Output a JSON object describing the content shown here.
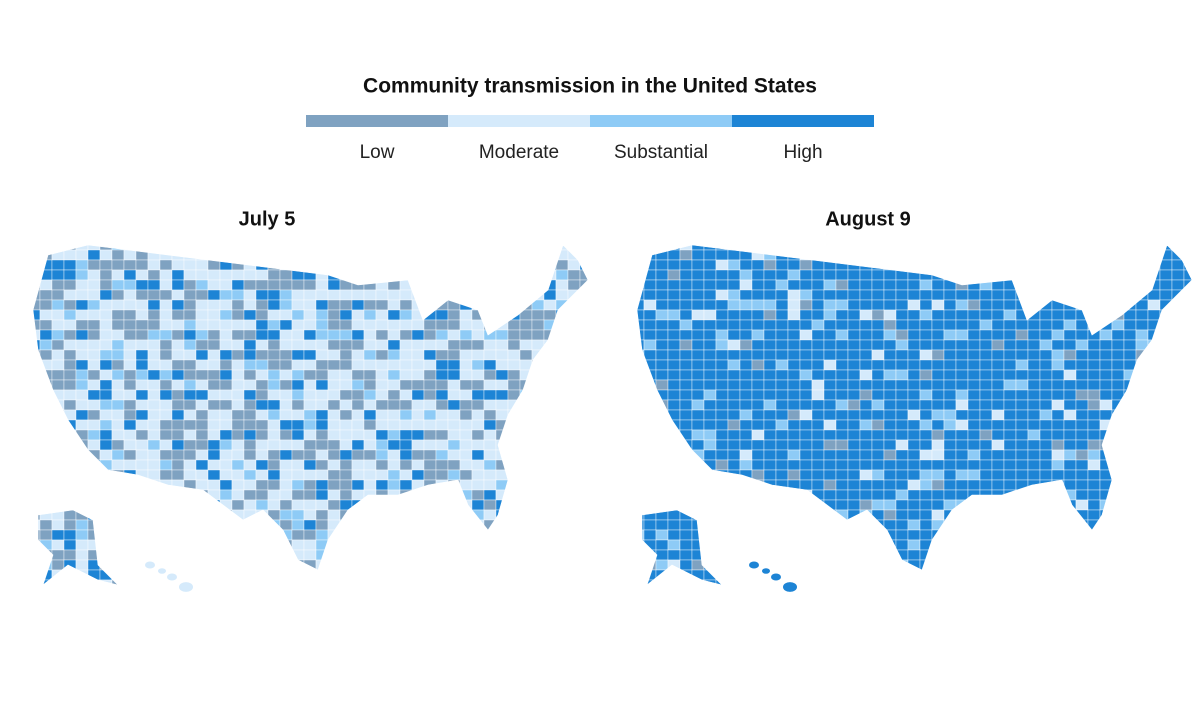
{
  "title": "Community transmission in the United States",
  "legend": [
    {
      "label": "Low",
      "color": "#7fa2c1"
    },
    {
      "label": "Moderate",
      "color": "#d5eafb"
    },
    {
      "label": "Substantial",
      "color": "#8ecbf6"
    },
    {
      "label": "High",
      "color": "#1d84d5"
    }
  ],
  "maps": [
    {
      "title": "July 5"
    },
    {
      "title": "August 9"
    }
  ]
}
